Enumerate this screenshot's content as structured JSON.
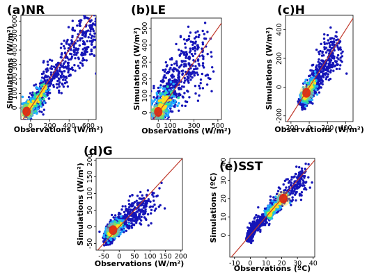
{
  "chart_data": [
    {
      "type": "scatter",
      "title": "(a)NR",
      "xlabel": "Observations (W/m²)",
      "ylabel": "Simulations (W/m²)",
      "xlim": [
        -100,
        680
      ],
      "ylim": [
        -80,
        640
      ],
      "xticks": [
        0,
        200,
        400,
        600
      ],
      "yticks": [
        0,
        100,
        200,
        300,
        400,
        500,
        600
      ],
      "one_to_one_line": true,
      "density_colormap": true,
      "cloud": {
        "spine": [
          [
            -40,
            -30
          ],
          [
            100,
            90
          ],
          [
            300,
            260
          ],
          [
            500,
            430
          ],
          [
            640,
            560
          ]
        ],
        "spread": 80,
        "core": [
          -40,
          -25
        ]
      }
    },
    {
      "type": "scatter",
      "title": "(b)LE",
      "xlabel": "Observations (W/m²)",
      "ylabel": "Simulations (W/m²)",
      "xlim": [
        -60,
        530
      ],
      "ylim": [
        -40,
        560
      ],
      "xticks": [
        0,
        100,
        300,
        500
      ],
      "yticks": [
        0,
        100,
        200,
        300,
        400,
        500
      ],
      "one_to_one_line": true,
      "density_colormap": true,
      "cloud": {
        "spine": [
          [
            0,
            0
          ],
          [
            80,
            110
          ],
          [
            160,
            200
          ],
          [
            260,
            290
          ],
          [
            360,
            380
          ]
        ],
        "spread": 90,
        "core": [
          0,
          5
        ]
      }
    },
    {
      "type": "scatter",
      "title": "(c)H",
      "xlabel": "Observations (W/m²)",
      "ylabel": "Simulations (W/m²)",
      "xlim": [
        -260,
        480
      ],
      "ylim": [
        -240,
        500
      ],
      "xticks": [
        -200,
        0,
        200,
        400
      ],
      "yticks": [
        -200,
        0,
        200,
        400
      ],
      "one_to_one_line": true,
      "density_colormap": true,
      "cloud": {
        "spine": [
          [
            -80,
            -110
          ],
          [
            0,
            -30
          ],
          [
            100,
            80
          ],
          [
            220,
            200
          ],
          [
            300,
            260
          ]
        ],
        "spread": 60,
        "core": [
          -30,
          -40
        ]
      }
    },
    {
      "type": "scatter",
      "title": "(d)G",
      "xlabel": "Observations (W/m²)",
      "ylabel": "Simulations (W/m²)",
      "xlim": [
        -75,
        205
      ],
      "ylim": [
        -70,
        205
      ],
      "xticks": [
        -50,
        0,
        50,
        100,
        150,
        200
      ],
      "yticks": [
        -50,
        0,
        50,
        100,
        150,
        200
      ],
      "one_to_one_line": true,
      "density_colormap": true,
      "cloud": {
        "spine": [
          [
            -40,
            -40
          ],
          [
            -20,
            -10
          ],
          [
            20,
            20
          ],
          [
            60,
            50
          ],
          [
            110,
            80
          ]
        ],
        "spread": 22,
        "core": [
          -20,
          -10
        ]
      }
    },
    {
      "type": "scatter",
      "title": "(e)SST",
      "xlabel": "Observations (ºC)",
      "ylabel": "Simulations (ºC)",
      "xlim": [
        -13,
        41
      ],
      "ylim": [
        -12,
        42
      ],
      "xticks": [
        -10,
        0,
        10,
        20,
        30,
        40
      ],
      "yticks": [
        0,
        10,
        20,
        30,
        40
      ],
      "one_to_one_line": true,
      "density_colormap": true,
      "cloud": {
        "spine": [
          [
            -1,
            -2
          ],
          [
            2,
            4
          ],
          [
            10,
            10
          ],
          [
            20,
            20
          ],
          [
            30,
            28
          ],
          [
            34,
            33
          ]
        ],
        "spread": 3,
        "core": [
          21,
          20
        ]
      }
    }
  ],
  "colors": {
    "scatter_base": "#1515b8",
    "density_low": "#22aaff",
    "density_mid": "#33dd99",
    "density_high": "#ffdd22",
    "density_peak": "#e02010",
    "one_to_one_line": "#c0392b"
  }
}
